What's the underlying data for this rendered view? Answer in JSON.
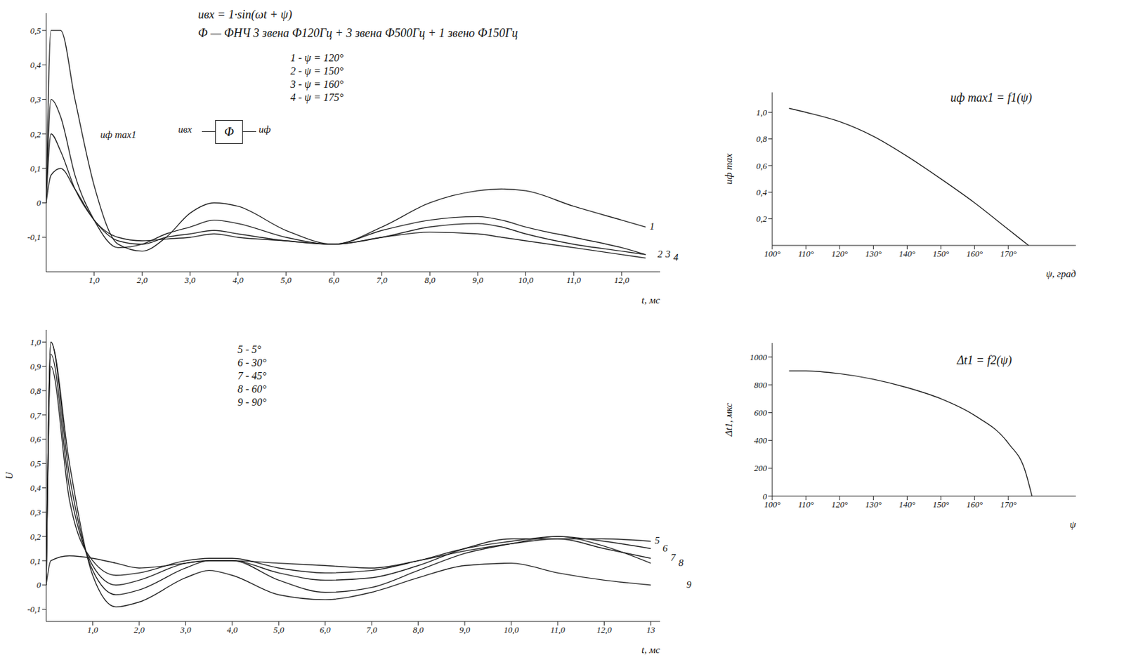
{
  "chart_data": [
    {
      "type": "line",
      "title": "uвх = 1·sin(ωt + ψ)",
      "subtitle": "Ф — ФНЧ 3 звена Ф120Гц + 3 звена Ф500Гц + 1 звено Ф150Гц",
      "diagram": {
        "input": "uвх",
        "block": "Ф",
        "output": "uф"
      },
      "annotations": [
        "1 - ψ = 120°",
        "2 - ψ = 150°",
        "3 - ψ = 160°",
        "4 - ψ = 175°"
      ],
      "callout": "uф max1",
      "x_label": "t, мс",
      "grid": false,
      "x": [
        0,
        0.1,
        0.3,
        0.6,
        1.0,
        1.5,
        2.0,
        2.5,
        3.0,
        3.5,
        4.0,
        5.0,
        6.0,
        7.0,
        8.0,
        9.0,
        9.5,
        10.0,
        11.0,
        12.0,
        12.5
      ],
      "series": [
        {
          "name": "1",
          "color": "#222222",
          "values": [
            0,
            0.5,
            0.5,
            0.3,
            0.05,
            -0.12,
            -0.14,
            -0.1,
            -0.03,
            0.0,
            -0.01,
            -0.08,
            -0.12,
            -0.07,
            0.0,
            0.035,
            0.04,
            0.035,
            -0.01,
            -0.05,
            -0.07
          ]
        },
        {
          "name": "2",
          "color": "#222222",
          "values": [
            0,
            0.3,
            0.25,
            0.08,
            -0.05,
            -0.13,
            -0.12,
            -0.09,
            -0.07,
            -0.05,
            -0.06,
            -0.1,
            -0.12,
            -0.08,
            -0.05,
            -0.04,
            -0.05,
            -0.07,
            -0.1,
            -0.13,
            -0.15
          ]
        },
        {
          "name": "3",
          "color": "#222222",
          "values": [
            0,
            0.2,
            0.15,
            0.04,
            -0.05,
            -0.11,
            -0.12,
            -0.1,
            -0.09,
            -0.08,
            -0.09,
            -0.11,
            -0.12,
            -0.1,
            -0.07,
            -0.06,
            -0.07,
            -0.09,
            -0.12,
            -0.14,
            -0.15
          ]
        },
        {
          "name": "4",
          "color": "#222222",
          "values": [
            0,
            0.08,
            0.1,
            0.04,
            -0.05,
            -0.1,
            -0.11,
            -0.105,
            -0.1,
            -0.09,
            -0.1,
            -0.11,
            -0.12,
            -0.1,
            -0.085,
            -0.09,
            -0.1,
            -0.11,
            -0.13,
            -0.15,
            -0.16
          ]
        }
      ],
      "xlim": [
        0,
        12.8
      ],
      "xticks": [
        {
          "value": 1,
          "label": "1,0"
        },
        {
          "value": 2,
          "label": "2,0"
        },
        {
          "value": 3,
          "label": "3,0"
        },
        {
          "value": 4,
          "label": "4,0"
        },
        {
          "value": 5,
          "label": "5,0"
        },
        {
          "value": 6,
          "label": "6,0"
        },
        {
          "value": 7,
          "label": "7,0"
        },
        {
          "value": 8,
          "label": "8,0"
        },
        {
          "value": 9,
          "label": "9,0"
        },
        {
          "value": 10,
          "label": "10,0"
        },
        {
          "value": 11,
          "label": "11,0"
        },
        {
          "value": 12,
          "label": "12,0"
        }
      ],
      "ylim": [
        -0.2,
        0.55
      ],
      "yticks": [
        {
          "value": -0.1,
          "label": "-0,1"
        },
        0,
        {
          "value": 0.1,
          "label": "0,1"
        },
        {
          "value": 0.2,
          "label": "0,2"
        },
        {
          "value": 0.3,
          "label": "0,3"
        },
        {
          "value": 0.4,
          "label": "0,4"
        },
        {
          "value": 0.5,
          "label": "0,5"
        }
      ]
    },
    {
      "type": "line",
      "annotations": [
        "5 - 5°",
        "6 - 30°",
        "7 - 45°",
        "8 - 60°",
        "9 - 90°"
      ],
      "x_label": "t, мс",
      "y_label": "U",
      "grid": false,
      "x": [
        0,
        0.1,
        0.5,
        1.0,
        1.5,
        2.0,
        3.0,
        3.5,
        4.0,
        5.0,
        6.0,
        7.0,
        8.0,
        9.0,
        10.0,
        11.0,
        12.0,
        13.0
      ],
      "series": [
        {
          "name": "5",
          "color": "#222222",
          "values": [
            0.0,
            0.1,
            0.12,
            0.11,
            0.09,
            0.07,
            0.09,
            0.1,
            0.1,
            0.09,
            0.08,
            0.07,
            0.1,
            0.14,
            0.17,
            0.19,
            0.19,
            0.18
          ]
        },
        {
          "name": "6",
          "color": "#222222",
          "values": [
            0,
            0.9,
            0.35,
            0.1,
            0.04,
            0.05,
            0.1,
            0.11,
            0.11,
            0.07,
            0.05,
            0.06,
            0.1,
            0.15,
            0.18,
            0.2,
            0.18,
            0.15
          ]
        },
        {
          "name": "7",
          "color": "#222222",
          "values": [
            0,
            0.95,
            0.4,
            0.08,
            0.0,
            0.02,
            0.09,
            0.1,
            0.1,
            0.05,
            0.02,
            0.03,
            0.08,
            0.15,
            0.19,
            0.19,
            0.15,
            0.11
          ]
        },
        {
          "name": "8",
          "color": "#222222",
          "values": [
            0,
            1.0,
            0.45,
            0.06,
            -0.04,
            -0.02,
            0.07,
            0.1,
            0.1,
            0.02,
            -0.03,
            -0.01,
            0.06,
            0.13,
            0.17,
            0.2,
            0.16,
            0.09
          ]
        },
        {
          "name": "9",
          "color": "#222222",
          "values": [
            0,
            1.0,
            0.5,
            0.04,
            -0.09,
            -0.07,
            0.03,
            0.06,
            0.04,
            -0.04,
            -0.06,
            -0.03,
            0.03,
            0.08,
            0.09,
            0.05,
            0.02,
            0.0
          ]
        }
      ],
      "xlim": [
        0,
        13.2
      ],
      "xticks": [
        {
          "value": 1,
          "label": "1,0"
        },
        {
          "value": 2,
          "label": "2,0"
        },
        {
          "value": 3,
          "label": "3,0"
        },
        {
          "value": 4,
          "label": "4,0"
        },
        {
          "value": 5,
          "label": "5,0"
        },
        {
          "value": 6,
          "label": "6,0"
        },
        {
          "value": 7,
          "label": "7,0"
        },
        {
          "value": 8,
          "label": "8,0"
        },
        {
          "value": 9,
          "label": "9,0"
        },
        {
          "value": 10,
          "label": "10,0"
        },
        {
          "value": 11,
          "label": "11,0"
        },
        {
          "value": 12,
          "label": "12,0"
        },
        13
      ],
      "ylim": [
        -0.15,
        1.05
      ],
      "yticks": [
        {
          "value": -0.1,
          "label": "-0,1"
        },
        0,
        {
          "value": 0.1,
          "label": "0,1"
        },
        {
          "value": 0.2,
          "label": "0,2"
        },
        {
          "value": 0.3,
          "label": "0,3"
        },
        {
          "value": 0.4,
          "label": "0,4"
        },
        {
          "value": 0.5,
          "label": "0,5"
        },
        {
          "value": 0.6,
          "label": "0,6"
        },
        {
          "value": 0.7,
          "label": "0,7"
        },
        {
          "value": 0.8,
          "label": "0,8"
        },
        {
          "value": 0.9,
          "label": "0,9"
        },
        {
          "value": 1.0,
          "label": "1,0"
        }
      ]
    },
    {
      "type": "line",
      "title": "uф max1 = f1(ψ)",
      "x_label": "ψ, град",
      "y_label": "uф max",
      "grid": false,
      "x": [
        105,
        110,
        120,
        130,
        140,
        150,
        160,
        170,
        176
      ],
      "series": [
        {
          "name": "uф max1",
          "color": "#222222",
          "values": [
            1.03,
            1.0,
            0.93,
            0.82,
            0.67,
            0.5,
            0.32,
            0.12,
            0.0
          ]
        }
      ],
      "xlim": [
        100,
        190
      ],
      "xticks": [
        {
          "value": 100,
          "label": "100°"
        },
        {
          "value": 110,
          "label": "110°"
        },
        {
          "value": 120,
          "label": "120°"
        },
        {
          "value": 130,
          "label": "130°"
        },
        {
          "value": 140,
          "label": "140°"
        },
        {
          "value": 150,
          "label": "150°"
        },
        {
          "value": 160,
          "label": "160°"
        },
        {
          "value": 170,
          "label": "170°"
        }
      ],
      "ylim": [
        0,
        1.15
      ],
      "yticks": [
        {
          "value": 0.2,
          "label": "0,2"
        },
        {
          "value": 0.4,
          "label": "0,4"
        },
        {
          "value": 0.6,
          "label": "0,6"
        },
        {
          "value": 0.8,
          "label": "0,8"
        },
        {
          "value": 1.0,
          "label": "1,0"
        }
      ]
    },
    {
      "type": "line",
      "title": "Δt1 = f2(ψ)",
      "x_label": "ψ",
      "y_label": "Δt1, мкс",
      "grid": false,
      "x": [
        105,
        110,
        120,
        130,
        140,
        150,
        160,
        170,
        175,
        177
      ],
      "series": [
        {
          "name": "Δt1",
          "color": "#222222",
          "values": [
            900,
            900,
            880,
            840,
            780,
            700,
            580,
            380,
            180,
            0
          ]
        }
      ],
      "xlim": [
        100,
        190
      ],
      "xticks": [
        {
          "value": 100,
          "label": "100°"
        },
        {
          "value": 110,
          "label": "110°"
        },
        {
          "value": 120,
          "label": "120°"
        },
        {
          "value": 130,
          "label": "130°"
        },
        {
          "value": 140,
          "label": "140°"
        },
        {
          "value": 150,
          "label": "150°"
        },
        {
          "value": 160,
          "label": "160°"
        },
        {
          "value": 170,
          "label": "170°"
        }
      ],
      "ylim": [
        0,
        1100
      ],
      "yticks": [
        0,
        200,
        400,
        600,
        800,
        1000
      ]
    }
  ]
}
